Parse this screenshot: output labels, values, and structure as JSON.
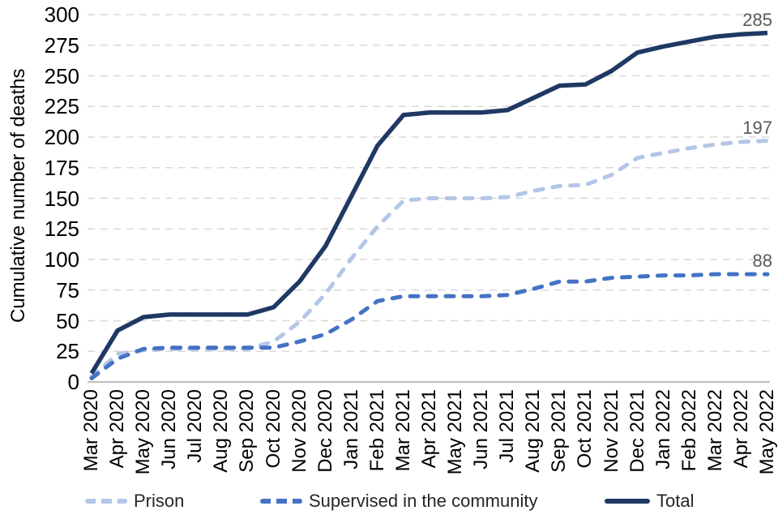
{
  "chart_data": {
    "type": "line",
    "title": "",
    "xlabel": "",
    "ylabel": "Cumulative number of deaths",
    "ylim": [
      0,
      300
    ],
    "yticks": [
      0,
      25,
      50,
      75,
      100,
      125,
      150,
      175,
      200,
      225,
      250,
      275,
      300
    ],
    "grid": "horizontal dashed",
    "legend_position": "bottom",
    "categories": [
      "Mar 2020",
      "Apr 2020",
      "May 2020",
      "Jun 2020",
      "Jul 2020",
      "Aug 2020",
      "Sep 2020",
      "Oct 2020",
      "Nov 2020",
      "Dec 2020",
      "Jan 2021",
      "Feb 2021",
      "Mar 2021",
      "Apr 2021",
      "May 2021",
      "Jun 2021",
      "Jul 2021",
      "Aug 2021",
      "Sep 2021",
      "Oct 2021",
      "Nov 2021",
      "Dec 2021",
      "Jan 2022",
      "Feb 2022",
      "Mar 2022",
      "Apr 2022",
      "May 2022"
    ],
    "series": [
      {
        "name": "Prison",
        "style": "dashed",
        "color": "#B4C6E7",
        "end_label": "197",
        "values": [
          4,
          23,
          26,
          27,
          27,
          27,
          27,
          33,
          49,
          72,
          101,
          127,
          148,
          150,
          150,
          150,
          151,
          156,
          160,
          161,
          169,
          183,
          187,
          191,
          194,
          196,
          197
        ]
      },
      {
        "name": "Supervised in the community",
        "style": "dashed",
        "color": "#4472C4",
        "end_label": "88",
        "values": [
          3,
          19,
          27,
          28,
          28,
          28,
          28,
          28,
          33,
          39,
          51,
          66,
          70,
          70,
          70,
          70,
          71,
          76,
          82,
          82,
          85,
          86,
          87,
          87,
          88,
          88,
          88
        ]
      },
      {
        "name": "Total",
        "style": "solid",
        "color": "#1F3864",
        "end_label": "285",
        "values": [
          7,
          42,
          53,
          55,
          55,
          55,
          55,
          61,
          82,
          111,
          152,
          193,
          218,
          220,
          220,
          220,
          222,
          232,
          242,
          243,
          254,
          269,
          274,
          278,
          282,
          284,
          285
        ]
      }
    ],
    "colors": {
      "gridline": "#D9D9D9",
      "axis_line": "#BFBFBF",
      "data_label": "#595959"
    }
  }
}
